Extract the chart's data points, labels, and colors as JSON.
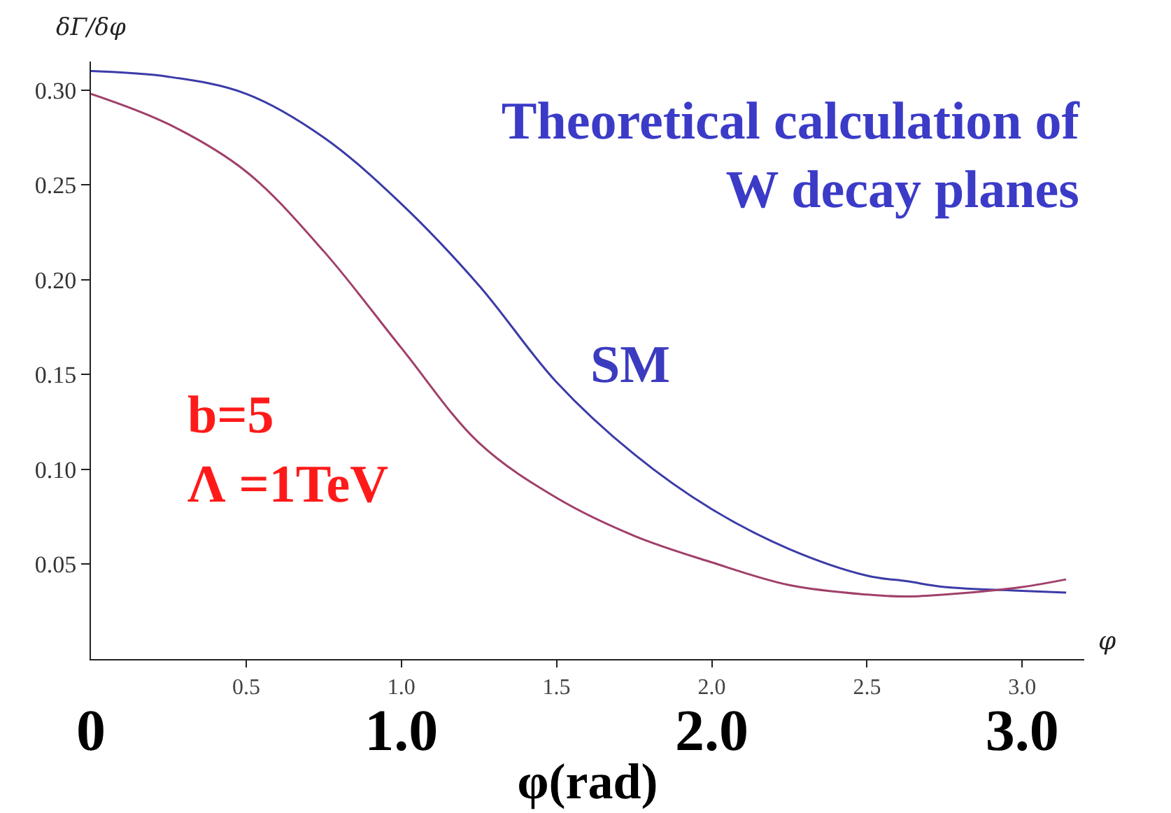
{
  "chart_data": {
    "type": "line",
    "title": "Theoretical calculation of\nW decay planes",
    "xlabel": "φ",
    "ylabel": "δΓ/δφ",
    "x2label": "φ(rad)",
    "x": [
      0,
      0.25,
      0.5,
      0.75,
      1.0,
      1.25,
      1.5,
      1.75,
      2.0,
      2.25,
      2.5,
      2.63,
      2.75,
      3.0,
      3.1416
    ],
    "series": [
      {
        "name": "SM",
        "color": "#3b3ba8",
        "values": [
          0.31,
          0.307,
          0.298,
          0.275,
          0.24,
          0.197,
          0.146,
          0.108,
          0.079,
          0.058,
          0.044,
          0.041,
          0.038,
          0.036,
          0.035
        ]
      },
      {
        "name": "b=5\nΛ =1TeV",
        "color": "#a0406a",
        "values": [
          0.298,
          0.282,
          0.257,
          0.215,
          0.164,
          0.114,
          0.085,
          0.065,
          0.051,
          0.039,
          0.034,
          0.033,
          0.034,
          0.038,
          0.042
        ]
      }
    ],
    "xlim": [
      0,
      3.2
    ],
    "xticks": [
      0.5,
      {
        "value": 1,
        "label": "1.0"
      },
      1.5,
      {
        "value": 2,
        "label": "2.0"
      },
      2.5,
      {
        "value": 3,
        "label": "3.0"
      }
    ],
    "x2lim": [
      0,
      3.2
    ],
    "x2ticks": [
      {
        "value": 0,
        "label": "0"
      },
      {
        "value": 1,
        "label": "1.0"
      },
      {
        "value": 2,
        "label": "2.0"
      },
      {
        "value": 3,
        "label": "3.0"
      }
    ],
    "ylim": [
      0,
      0.315
    ],
    "yticks": [
      0.05,
      {
        "value": 0.1,
        "label": "0.10"
      },
      0.15,
      {
        "value": 0.2,
        "label": "0.20"
      },
      0.25,
      {
        "value": 0.3,
        "label": "0.30"
      }
    ],
    "grid": false,
    "legend": false,
    "marker": "none",
    "line_style": "solid"
  }
}
